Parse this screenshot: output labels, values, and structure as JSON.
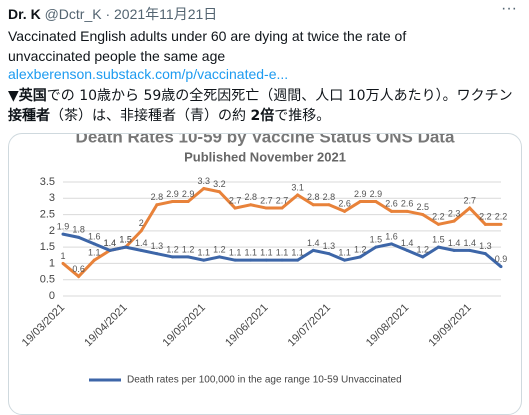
{
  "tweet": {
    "name": "Dr. K",
    "handle": "@Dctr_K",
    "date": "· 2021年11月21日",
    "text": "Vaccinated English adults under 60 are dying at twice the rate of unvaccinated people the same age",
    "link": "alexberenson.substack.com/p/vaccinated-e...",
    "jp_segments": [
      {
        "text": "▼英国",
        "bold": true
      },
      {
        "text": "での 10歳から 59歳の全死因死亡（週間、人口 10万人あたり）。ワクチン",
        "bold": false
      },
      {
        "text": "接種者",
        "bold": true
      },
      {
        "text": "（茶）は、非接種者（青）の約 ",
        "bold": false
      },
      {
        "text": "2倍",
        "bold": true
      },
      {
        "text": "で推移。",
        "bold": false
      }
    ]
  },
  "chart_data": {
    "type": "line",
    "title": "Death Rates 10-59  by Vaccine Status ONS Data",
    "subtitle": "Published November 2021",
    "categories": [
      "19/03/2021",
      null,
      null,
      null,
      "19/04/2021",
      null,
      null,
      null,
      null,
      "19/05/2021",
      null,
      null,
      null,
      "19/06/2021",
      null,
      null,
      null,
      "19/07/2021",
      null,
      null,
      null,
      null,
      "19/08/2021",
      null,
      null,
      null,
      "19/09/2021",
      null,
      null
    ],
    "series": [
      {
        "color": "#e8823a",
        "values": [
          1,
          0.6,
          1.1,
          1.4,
          1.5,
          2,
          2.8,
          2.9,
          2.9,
          3.3,
          3.2,
          2.7,
          2.8,
          2.7,
          2.7,
          3.1,
          2.8,
          2.8,
          2.6,
          2.9,
          2.9,
          2.6,
          2.6,
          2.5,
          2.2,
          2.3,
          2.7,
          2.2,
          2.2
        ]
      },
      {
        "name": "Death rates per 100,000 in the age range 10-59 Unvaccinated",
        "color": "#3d66a8",
        "values": [
          1.9,
          1.8,
          1.6,
          1.4,
          1.5,
          1.4,
          1.3,
          1.2,
          1.2,
          1.1,
          1.2,
          1.1,
          1.1,
          1.1,
          1.1,
          1.1,
          1.4,
          1.3,
          1.1,
          1.2,
          1.5,
          1.6,
          1.4,
          1.2,
          1.5,
          1.4,
          1.4,
          1.3,
          0.9
        ]
      }
    ],
    "ylim": [
      0,
      3.5
    ],
    "yticks": [
      0,
      0.5,
      1,
      1.5,
      2,
      2.5,
      3,
      3.5
    ],
    "grid": true
  }
}
